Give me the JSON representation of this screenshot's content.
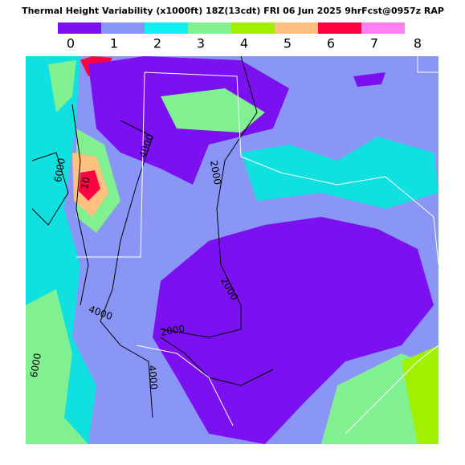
{
  "header": {
    "title": "Thermal Height Variability (x1000ft) 18Z(13cdt) FRI 06 Jun 2025 9hrFcst@0957z RAP"
  },
  "colorbar": {
    "labels": [
      "0",
      "1",
      "2",
      "3",
      "4",
      "5",
      "6",
      "7",
      "8"
    ],
    "colors": [
      "#7b10f0",
      "#8a96f5",
      "#10f0f0",
      "#80f090",
      "#a0f000",
      "#ffc080",
      "#ff0040",
      "#ff80f0"
    ]
  },
  "contour_labels": [
    "2000",
    "2000",
    "2000",
    "4000",
    "4000",
    "4000",
    "6000",
    "6000",
    "10"
  ]
}
